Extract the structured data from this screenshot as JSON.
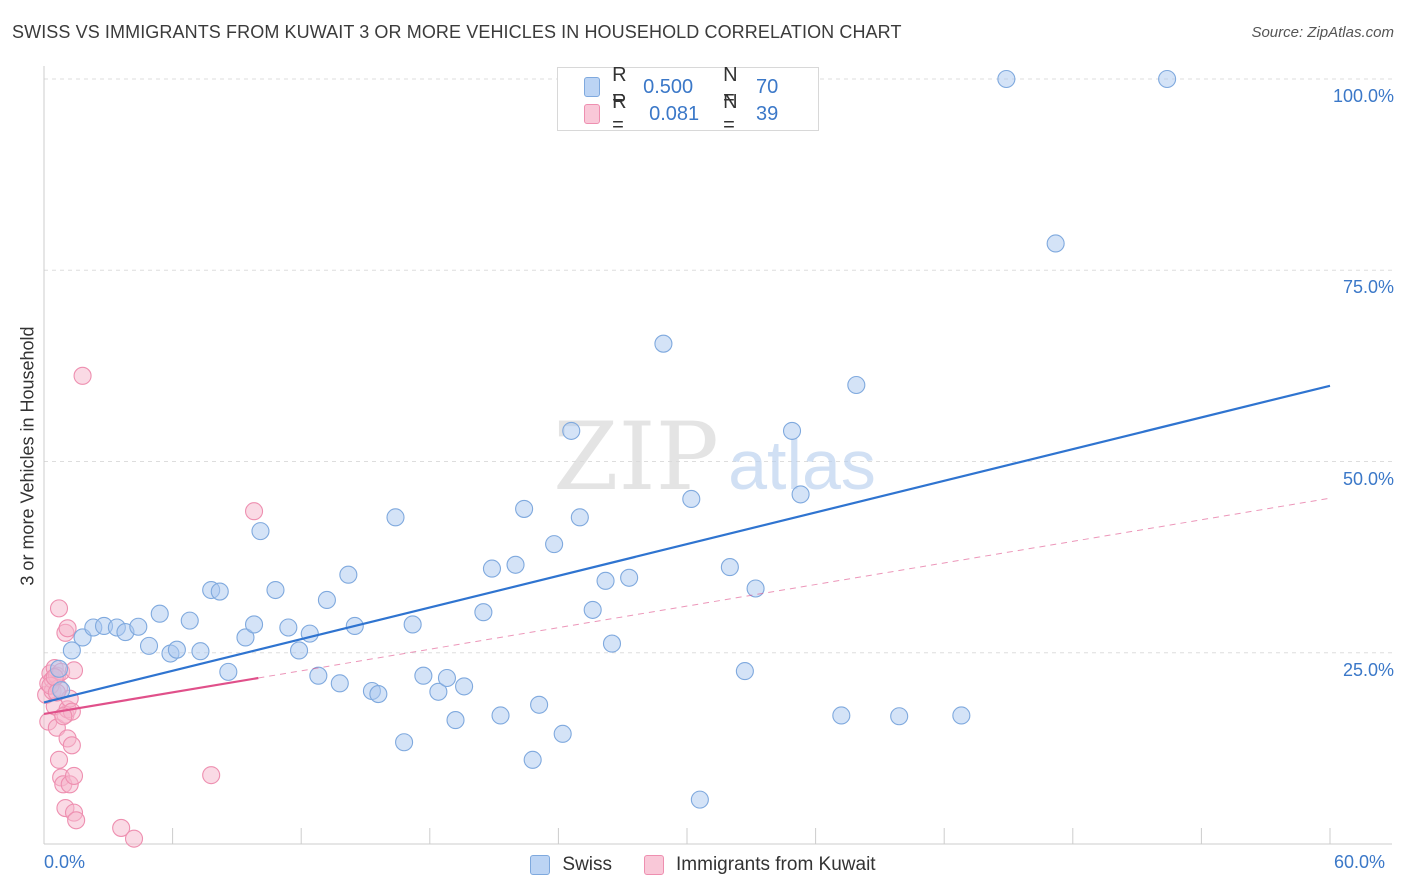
{
  "title": "SWISS VS IMMIGRANTS FROM KUWAIT 3 OR MORE VEHICLES IN HOUSEHOLD CORRELATION CHART",
  "source": "Source: ZipAtlas.com",
  "watermark": {
    "zip": "ZIP",
    "atlas": "atlas"
  },
  "colors": {
    "swiss_fill": "#a9c8f0",
    "swiss_stroke": "#7fa9de",
    "swiss_line": "#2f74d0",
    "kuwait_fill": "#f6b6cc",
    "kuwait_stroke": "#ee8fb0",
    "kuwait_line": "#e0508a",
    "grid": "#dddddd",
    "tick_text": "#3b78c8"
  },
  "legend_top": {
    "swiss": {
      "r_label": "R =",
      "r_value": "0.500",
      "n_label": "N =",
      "n_value": "70"
    },
    "kuwait": {
      "r_label": "R =",
      "r_value": "0.081",
      "n_label": "N =",
      "n_value": "39"
    }
  },
  "legend_bottom": {
    "swiss": "Swiss",
    "kuwait": "Immigrants from Kuwait"
  },
  "chart_data": {
    "type": "scatter",
    "title": "SWISS VS IMMIGRANTS FROM KUWAIT 3 OR MORE VEHICLES IN HOUSEHOLD CORRELATION CHART",
    "xlabel": "",
    "ylabel": "3 or more Vehicles in Household",
    "xlim": [
      0,
      60
    ],
    "ylim": [
      0,
      100
    ],
    "x_tick_labels": [
      "0.0%",
      "60.0%"
    ],
    "y_ticks": [
      25,
      50,
      75,
      100
    ],
    "y_tick_labels": [
      "25.0%",
      "50.0%",
      "75.0%",
      "100.0%"
    ],
    "grid": true,
    "series": [
      {
        "name": "Swiss",
        "r": 0.5,
        "n": 70,
        "trend": {
          "x": [
            0,
            60
          ],
          "y": [
            18.5,
            59.9
          ]
        },
        "points": [
          [
            0.7,
            22.9
          ],
          [
            0.8,
            20.1
          ],
          [
            1.3,
            25.3
          ],
          [
            1.8,
            27.0
          ],
          [
            2.3,
            28.3
          ],
          [
            2.8,
            28.5
          ],
          [
            3.4,
            28.3
          ],
          [
            3.8,
            27.7
          ],
          [
            4.4,
            28.4
          ],
          [
            4.9,
            25.9
          ],
          [
            5.4,
            30.1
          ],
          [
            5.9,
            24.9
          ],
          [
            6.2,
            25.4
          ],
          [
            6.8,
            29.2
          ],
          [
            7.3,
            25.2
          ],
          [
            7.8,
            33.2
          ],
          [
            8.2,
            33.0
          ],
          [
            8.6,
            22.5
          ],
          [
            9.4,
            27.0
          ],
          [
            9.8,
            28.7
          ],
          [
            10.1,
            40.9
          ],
          [
            10.8,
            33.2
          ],
          [
            11.4,
            28.3
          ],
          [
            11.9,
            25.3
          ],
          [
            12.4,
            27.5
          ],
          [
            12.8,
            22.0
          ],
          [
            13.2,
            31.9
          ],
          [
            13.8,
            21.0
          ],
          [
            14.2,
            35.2
          ],
          [
            14.5,
            28.5
          ],
          [
            15.3,
            20.0
          ],
          [
            15.6,
            19.6
          ],
          [
            16.4,
            42.7
          ],
          [
            16.8,
            13.3
          ],
          [
            17.2,
            28.7
          ],
          [
            17.7,
            22.0
          ],
          [
            18.4,
            19.9
          ],
          [
            18.8,
            21.7
          ],
          [
            19.2,
            16.2
          ],
          [
            19.6,
            20.6
          ],
          [
            20.5,
            30.3
          ],
          [
            20.9,
            36.0
          ],
          [
            21.3,
            16.8
          ],
          [
            22.0,
            36.5
          ],
          [
            22.4,
            43.8
          ],
          [
            22.8,
            11.0
          ],
          [
            23.1,
            18.2
          ],
          [
            23.8,
            39.2
          ],
          [
            24.2,
            14.4
          ],
          [
            24.6,
            54.0
          ],
          [
            25.0,
            42.7
          ],
          [
            25.6,
            30.6
          ],
          [
            26.2,
            34.4
          ],
          [
            26.5,
            26.2
          ],
          [
            27.3,
            34.8
          ],
          [
            28.9,
            65.4
          ],
          [
            30.2,
            45.1
          ],
          [
            30.6,
            5.8
          ],
          [
            32.0,
            36.2
          ],
          [
            32.7,
            22.6
          ],
          [
            33.2,
            33.4
          ],
          [
            34.9,
            54.0
          ],
          [
            35.3,
            45.7
          ],
          [
            37.2,
            16.8
          ],
          [
            37.9,
            60.0
          ],
          [
            39.9,
            16.7
          ],
          [
            42.8,
            16.8
          ],
          [
            44.9,
            100.0
          ],
          [
            47.2,
            78.5
          ],
          [
            52.4,
            100.0
          ]
        ]
      },
      {
        "name": "Immigrants from Kuwait",
        "r": 0.081,
        "n": 39,
        "trend": {
          "x": [
            0,
            10
          ],
          "y": [
            17.0,
            21.7
          ]
        },
        "trend_dashed": {
          "x": [
            10,
            60
          ],
          "y": [
            21.7,
            45.2
          ]
        },
        "points": [
          [
            0.1,
            19.5
          ],
          [
            0.2,
            21.0
          ],
          [
            0.2,
            16.0
          ],
          [
            0.3,
            22.3
          ],
          [
            0.4,
            20.0
          ],
          [
            0.4,
            21.5
          ],
          [
            0.5,
            23.0
          ],
          [
            0.5,
            18.0
          ],
          [
            0.6,
            15.2
          ],
          [
            0.6,
            22.0
          ],
          [
            0.7,
            30.8
          ],
          [
            0.7,
            20.4
          ],
          [
            0.7,
            11.0
          ],
          [
            0.8,
            22.5
          ],
          [
            0.8,
            8.7
          ],
          [
            0.9,
            7.8
          ],
          [
            1.0,
            16.9
          ],
          [
            1.0,
            27.6
          ],
          [
            1.0,
            4.7
          ],
          [
            1.1,
            28.2
          ],
          [
            1.1,
            13.8
          ],
          [
            1.1,
            17.6
          ],
          [
            1.2,
            7.8
          ],
          [
            1.2,
            19.0
          ],
          [
            1.3,
            17.3
          ],
          [
            1.3,
            12.9
          ],
          [
            1.4,
            22.7
          ],
          [
            1.4,
            8.9
          ],
          [
            1.4,
            4.1
          ],
          [
            1.5,
            3.1
          ],
          [
            1.8,
            61.2
          ],
          [
            3.6,
            2.1
          ],
          [
            4.2,
            0.7
          ],
          [
            7.8,
            9.0
          ],
          [
            9.8,
            43.5
          ],
          [
            0.3,
            20.7
          ],
          [
            0.5,
            21.8
          ],
          [
            0.6,
            19.8
          ],
          [
            0.9,
            16.7
          ]
        ]
      }
    ]
  }
}
